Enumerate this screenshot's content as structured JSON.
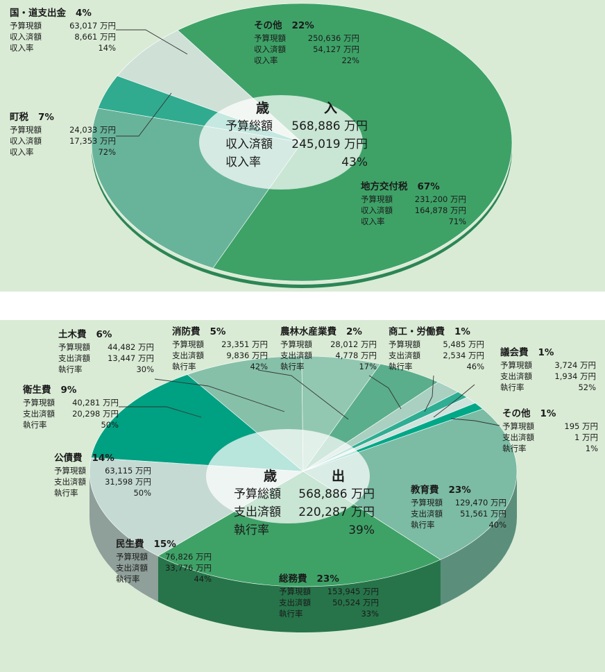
{
  "chart_data": [
    {
      "type": "pie",
      "center_label": {
        "title": "歳　入",
        "rows": [
          {
            "label": "予算総額",
            "value": "568,886 万円"
          },
          {
            "label": "収入済額",
            "value": "245,019 万円"
          },
          {
            "label": "収入率",
            "value": "43%"
          }
        ]
      },
      "slices": [
        {
          "name": "地方交付税",
          "percent": 67,
          "color": "#3ea267",
          "side": "#27744a",
          "rows": [
            {
              "label": "予算現額",
              "value": "231,200 万円"
            },
            {
              "label": "収入済額",
              "value": "164,878 万円"
            },
            {
              "label": "収入率",
              "value": "71%"
            }
          ]
        },
        {
          "name": "町税",
          "percent": 7,
          "color": "#cfe0d7",
          "side": "#9fb5a8",
          "rows": [
            {
              "label": "予算現額",
              "value": "24,033 万円"
            },
            {
              "label": "収入済額",
              "value": "17,353 万円"
            },
            {
              "label": "収入率",
              "value": "72%"
            }
          ]
        },
        {
          "name": "国・道支出金",
          "percent": 4,
          "color": "#30ab8f",
          "side": "#1f7c66",
          "rows": [
            {
              "label": "予算現額",
              "value": "63,017 万円"
            },
            {
              "label": "収入済額",
              "value": "8,661 万円"
            },
            {
              "label": "収入率",
              "value": "14%"
            }
          ]
        },
        {
          "name": "その他",
          "percent": 22,
          "color": "#68b49a",
          "side": "#468a73",
          "rows": [
            {
              "label": "予算現額",
              "value": "250,636 万円"
            },
            {
              "label": "収入済額",
              "value": "54,127 万円"
            },
            {
              "label": "収入率",
              "value": "22%"
            }
          ]
        }
      ]
    },
    {
      "type": "pie",
      "center_label": {
        "title": "歳　出",
        "rows": [
          {
            "label": "予算総額",
            "value": "568,886 万円"
          },
          {
            "label": "支出済額",
            "value": "220,287 万円"
          },
          {
            "label": "執行率",
            "value": "39%"
          }
        ]
      },
      "slices": [
        {
          "name": "総務費",
          "percent": 23,
          "color": "#3ea267",
          "side": "#27744a",
          "rows": [
            {
              "label": "予算現額",
              "value": "153,945 万円"
            },
            {
              "label": "支出済額",
              "value": "50,524 万円"
            },
            {
              "label": "執行率",
              "value": "33%"
            }
          ]
        },
        {
          "name": "民生費",
          "percent": 15,
          "color": "#c5dad3",
          "side": "#8f9f9a",
          "rows": [
            {
              "label": "予算現額",
              "value": "76,826 万円"
            },
            {
              "label": "支出済額",
              "value": "33,776 万円"
            },
            {
              "label": "執行率",
              "value": "44%"
            }
          ]
        },
        {
          "name": "公債費",
          "percent": 14,
          "color": "#00a082",
          "side": "#00705b",
          "rows": [
            {
              "label": "予算現額",
              "value": "63,115 万円"
            },
            {
              "label": "支出済額",
              "value": "31,598 万円"
            },
            {
              "label": "執行率",
              "value": "50%"
            }
          ]
        },
        {
          "name": "衛生費",
          "percent": 9,
          "color": "#86c0a9",
          "side": "#5f9380",
          "rows": [
            {
              "label": "予算現額",
              "value": "40,281 万円"
            },
            {
              "label": "支出済額",
              "value": "20,298 万円"
            },
            {
              "label": "執行率",
              "value": "50%"
            }
          ]
        },
        {
          "name": "土木費",
          "percent": 6,
          "color": "#92c8b1",
          "side": "#6a9a86",
          "rows": [
            {
              "label": "予算現額",
              "value": "44,482 万円"
            },
            {
              "label": "支出済額",
              "value": "13,447 万円"
            },
            {
              "label": "執行率",
              "value": "30%"
            }
          ]
        },
        {
          "name": "消防費",
          "percent": 5,
          "color": "#5aae8c",
          "side": "#3d826a",
          "rows": [
            {
              "label": "予算現額",
              "value": "23,351 万円"
            },
            {
              "label": "支出済額",
              "value": "9,836 万円"
            },
            {
              "label": "執行率",
              "value": "42%"
            }
          ]
        },
        {
          "name": "農林水産業費",
          "percent": 2,
          "color": "#a9d0c1",
          "side": "#7da090",
          "rows": [
            {
              "label": "予算現額",
              "value": "28,012 万円"
            },
            {
              "label": "支出済額",
              "value": "4,778 万円"
            },
            {
              "label": "執行率",
              "value": "17%"
            }
          ]
        },
        {
          "name": "商工・労働費",
          "percent": 1,
          "color": "#2fae93",
          "side": "#1f7f6a",
          "rows": [
            {
              "label": "予算現額",
              "value": "5,485 万円"
            },
            {
              "label": "支出済額",
              "value": "2,534 万円"
            },
            {
              "label": "執行率",
              "value": "46%"
            }
          ]
        },
        {
          "name": "議会費",
          "percent": 1,
          "color": "#cfe3dc",
          "side": "#9fb2ab",
          "rows": [
            {
              "label": "予算現額",
              "value": "3,724 万円"
            },
            {
              "label": "支出済額",
              "value": "1,934 万円"
            },
            {
              "label": "執行率",
              "value": "52%"
            }
          ]
        },
        {
          "name": "その他",
          "percent": 1,
          "color": "#00a888",
          "side": "#007a63",
          "rows": [
            {
              "label": "予算現額",
              "value": "195 万円"
            },
            {
              "label": "支出済額",
              "value": "1 万円"
            },
            {
              "label": "執行率",
              "value": "1%"
            }
          ]
        },
        {
          "name": "教育費",
          "percent": 23,
          "color": "#7cbba4",
          "side": "#5b8f7c",
          "rows": [
            {
              "label": "予算現額",
              "value": "129,470 万円"
            },
            {
              "label": "支出済額",
              "value": "51,561 万円"
            },
            {
              "label": "執行率",
              "value": "40%"
            }
          ]
        }
      ]
    }
  ]
}
